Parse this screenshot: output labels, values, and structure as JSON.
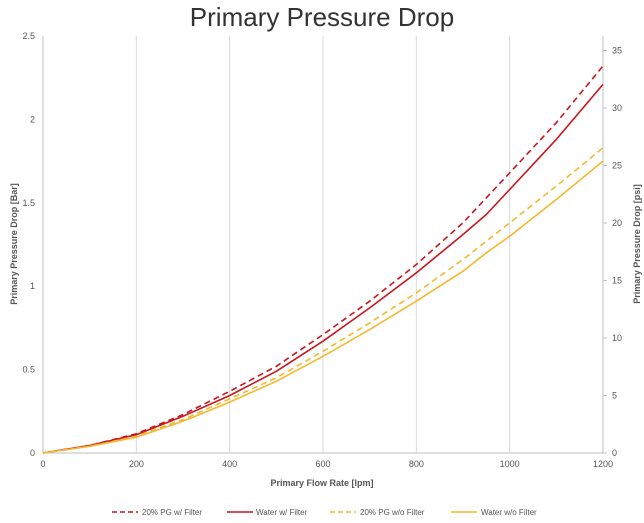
{
  "chart_data": {
    "type": "line",
    "title": "Primary Pressure Drop",
    "xlabel": "Primary Flow Rate [lpm]",
    "ylabel": "Primary Pressure Drop [Bar]",
    "y2label": "Primary Pressure Drop [psi]",
    "xlim": [
      0,
      1200
    ],
    "ylim": [
      0,
      2.5
    ],
    "y2lim": [
      0,
      36.26
    ],
    "x_ticks": [
      "0",
      "200",
      "400",
      "600",
      "800",
      "1000",
      "1200"
    ],
    "y_ticks": [
      "0",
      "0.5",
      "1",
      "1.5",
      "2",
      "2.5"
    ],
    "y2_ticks": [
      "0",
      "5",
      "10",
      "15",
      "20",
      "25",
      "30",
      "35"
    ],
    "grid": "vertical",
    "legend_position": "bottom",
    "colors": {
      "red": "#c8161d",
      "amber": "#f5b82e",
      "grid": "#d9d9d9",
      "axis": "#bfbfbf"
    },
    "series": [
      {
        "name": "20% PG w/ Filter",
        "color": "#c8161d",
        "dash": true,
        "x": [
          0,
          100,
          200,
          300,
          400,
          500,
          600,
          700,
          800,
          900,
          1000,
          1100,
          1200
        ],
        "y": [
          0,
          0.045,
          0.115,
          0.23,
          0.37,
          0.52,
          0.71,
          0.91,
          1.13,
          1.38,
          1.68,
          1.98,
          2.32
        ]
      },
      {
        "name": "Water w/ Filter",
        "color": "#c8161d",
        "dash": false,
        "x": [
          0,
          100,
          200,
          300,
          400,
          500,
          600,
          700,
          800,
          900,
          950,
          1000,
          1100,
          1200
        ],
        "y": [
          0,
          0.045,
          0.11,
          0.22,
          0.345,
          0.49,
          0.67,
          0.87,
          1.08,
          1.31,
          1.43,
          1.58,
          1.88,
          2.21
        ]
      },
      {
        "name": "20% PG w/o Filter",
        "color": "#f5b82e",
        "dash": true,
        "x": [
          0,
          100,
          200,
          300,
          400,
          500,
          600,
          700,
          800,
          900,
          1000,
          1100,
          1200
        ],
        "y": [
          0,
          0.04,
          0.1,
          0.2,
          0.325,
          0.45,
          0.61,
          0.78,
          0.96,
          1.16,
          1.38,
          1.6,
          1.83
        ]
      },
      {
        "name": "Water w/o Filter",
        "color": "#f5b82e",
        "dash": false,
        "x": [
          0,
          100,
          200,
          300,
          400,
          500,
          600,
          700,
          800,
          900,
          950,
          1000,
          1100,
          1200
        ],
        "y": [
          0,
          0.04,
          0.095,
          0.19,
          0.305,
          0.43,
          0.58,
          0.74,
          0.91,
          1.09,
          1.2,
          1.3,
          1.52,
          1.75
        ]
      }
    ]
  }
}
